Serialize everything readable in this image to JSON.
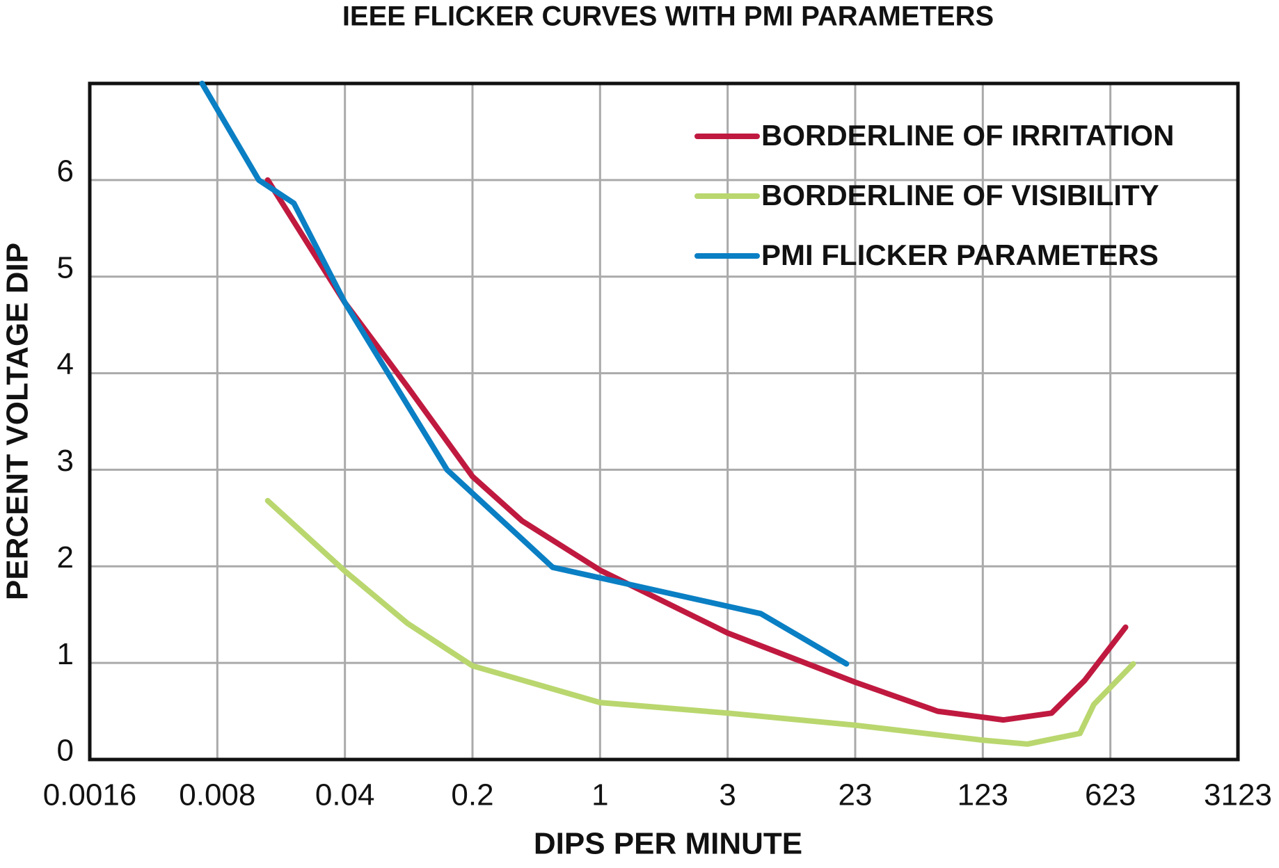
{
  "chart_data": {
    "type": "line",
    "title": "IEEE FLICKER CURVES WITH PMI PARAMETERS",
    "x_label": "DIPS PER MINUTE",
    "y_label": "PERCENT VOLTAGE DIP",
    "xlim": [
      0.0016,
      3123
    ],
    "xticks": [
      0.0016,
      0.008,
      0.04,
      0.2,
      1,
      3,
      23,
      123,
      623,
      3123
    ],
    "ylim": [
      0,
      7
    ],
    "yticks": [
      0,
      1,
      2,
      3,
      4,
      5,
      6
    ],
    "grid": true,
    "legend": "upper right",
    "series": [
      {
        "name": "BORDERLINE OF IRRITATION",
        "color": "#c0193f",
        "x": [
          0.0151,
          0.04,
          0.088,
          0.2,
          0.374,
          1,
          3,
          23,
          68,
          160,
          295,
          450,
          755
        ],
        "values": [
          6.0,
          4.73,
          3.86,
          2.93,
          2.47,
          1.96,
          1.31,
          0.8,
          0.5,
          0.41,
          0.48,
          0.82,
          1.37
        ]
      },
      {
        "name": "BORDERLINE OF VISIBILITY",
        "color": "#b9d76e",
        "x": [
          0.0151,
          0.04,
          0.088,
          0.2,
          1,
          3,
          23,
          123,
          217,
          423,
          505,
          832
        ],
        "values": [
          2.68,
          1.95,
          1.41,
          0.97,
          0.59,
          0.48,
          0.355,
          0.2,
          0.16,
          0.27,
          0.57,
          0.99
        ]
      },
      {
        "name": "PMI FLICKER PARAMETERS",
        "color": "#0a7fc4",
        "x": [
          0.0066,
          0.0135,
          0.021,
          0.04,
          0.145,
          0.55,
          5.1,
          20
        ],
        "values": [
          7.0,
          6.0,
          5.76,
          4.73,
          3.0,
          1.99,
          1.51,
          0.99
        ]
      }
    ]
  }
}
